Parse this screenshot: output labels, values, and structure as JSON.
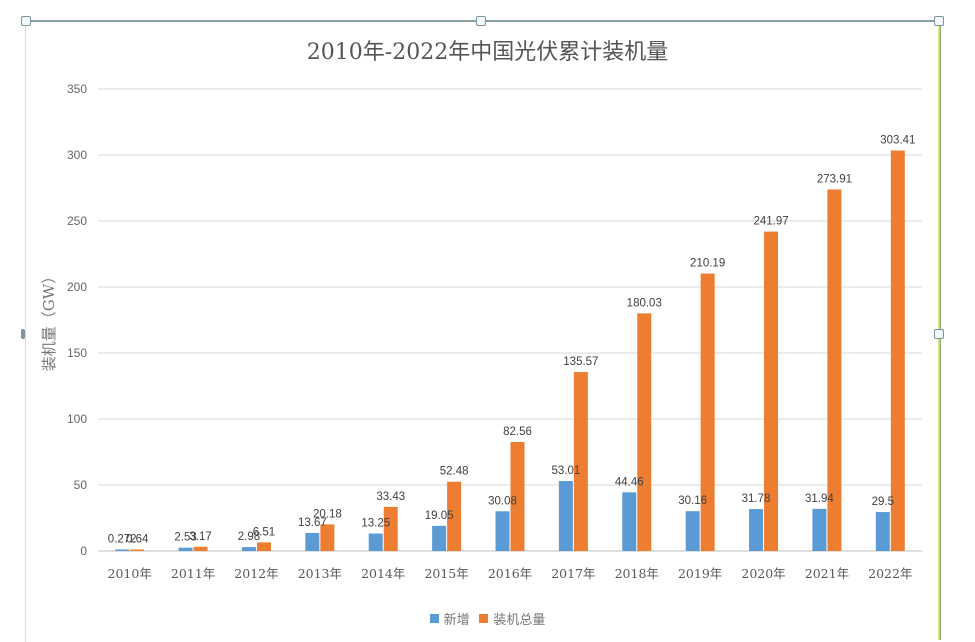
{
  "chart_data": {
    "type": "bar",
    "title": "2010年-2022年中国光伏累计装机量",
    "xlabel": "",
    "ylabel": "装机量（GW）",
    "ylim": [
      0,
      350
    ],
    "yticks": [
      0,
      50,
      100,
      150,
      200,
      250,
      300,
      350
    ],
    "grid": true,
    "legend_position": "bottom",
    "categories": [
      "2010年",
      "2011年",
      "2012年",
      "2013年",
      "2014年",
      "2015年",
      "2016年",
      "2017年",
      "2018年",
      "2019年",
      "2020年",
      "2021年",
      "2022年"
    ],
    "series": [
      {
        "name": "新增",
        "color": "#5b9bd5",
        "values": [
          0.272,
          2.53,
          2.98,
          13.67,
          13.25,
          19.05,
          30.08,
          53.01,
          44.46,
          30.16,
          31.78,
          31.94,
          29.5
        ],
        "labels": [
          "0.272",
          "2.53",
          "2.98",
          "13.67",
          "13.25",
          "19.05",
          "30.08",
          "53.01",
          "44.46",
          "30.16",
          "31.78",
          "31.94",
          "29.5"
        ]
      },
      {
        "name": "装机总量",
        "color": "#ed7d31",
        "values": [
          0.64,
          3.17,
          6.51,
          20.18,
          33.43,
          52.48,
          82.56,
          135.57,
          180.03,
          210.19,
          241.97,
          273.91,
          303.41
        ],
        "labels": [
          "0.64",
          "3.17",
          "6.51",
          "20.18",
          "33.43",
          "52.48",
          "82.56",
          "135.57",
          "180.03",
          "210.19",
          "241.97",
          "273.91",
          "303.41"
        ]
      }
    ]
  }
}
